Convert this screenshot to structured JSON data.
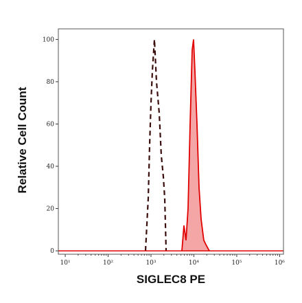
{
  "chart_data": {
    "type": "histogram-overlay",
    "x_label": "SIGLEC8 PE",
    "y_label": "Relative Cell Count",
    "log_x": true,
    "xlim": [
      6.9,
      1230000
    ],
    "ylim": [
      -1.6,
      105
    ],
    "xticks": [
      {
        "value": 10,
        "label": "10¹"
      },
      {
        "value": 100,
        "label": "10²"
      },
      {
        "value": 1000,
        "label": "10³"
      },
      {
        "value": 10000,
        "label": "10⁴"
      },
      {
        "value": 100000,
        "label": "10⁵"
      },
      {
        "value": 1000000,
        "label": "10⁶"
      }
    ],
    "yticks": [
      0,
      20,
      40,
      60,
      80,
      100
    ],
    "series": [
      {
        "color": "#3a0d0d",
        "style": "dashed",
        "filled": false,
        "x": [
          745,
          863,
          929,
          1000,
          1077,
          1202,
          1343,
          1556,
          1738,
          1941,
          2089,
          2249
        ],
        "values": [
          0,
          25,
          50,
          70,
          85,
          100,
          80,
          65,
          45,
          35,
          25,
          0
        ]
      },
      {
        "color": "#e00000",
        "style": "solid",
        "filled": true,
        "x": [
          5248,
          5861,
          6546,
          7311,
          8166,
          9120,
          9817,
          10568,
          11803,
          13183,
          14723,
          17061,
          19055,
          22909
        ],
        "values": [
          0,
          12,
          5,
          20,
          60,
          95,
          100,
          85,
          60,
          30,
          15,
          5,
          3,
          0
        ]
      }
    ]
  }
}
